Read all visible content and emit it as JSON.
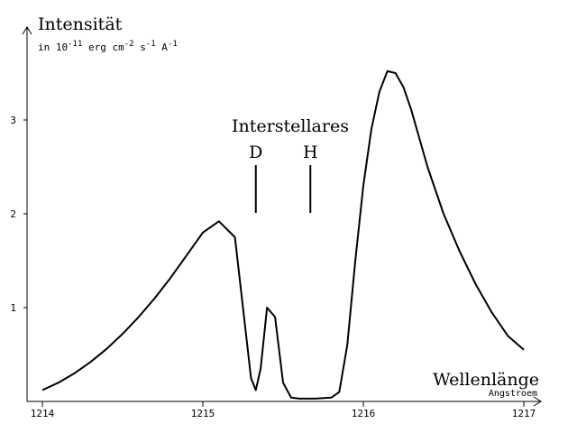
{
  "chart_data": {
    "type": "line",
    "ylabel": "Intensität",
    "yunit": {
      "prefix": "in 10",
      "exp1": "-11",
      "mid1": " erg cm",
      "exp2": "-2",
      "mid2": " s",
      "exp3": "-1",
      "mid3": " A",
      "exp4": "-1"
    },
    "xlabel": "Wellenlänge",
    "xunit": "Angstroem",
    "xlim": [
      1214,
      1217
    ],
    "ylim": [
      0,
      3.8
    ],
    "x_ticks": [
      {
        "value": 1214,
        "label": "1214"
      },
      {
        "value": 1215,
        "label": "1215"
      },
      {
        "value": 1216,
        "label": "1216"
      },
      {
        "value": 1217,
        "label": "1217"
      }
    ],
    "y_ticks": [
      {
        "value": 1,
        "label": "1"
      },
      {
        "value": 2,
        "label": "2"
      },
      {
        "value": 3,
        "label": "3"
      }
    ],
    "annotations": {
      "title": "Interstellares",
      "lines": [
        {
          "label": "D",
          "x": 1215.33
        },
        {
          "label": "H",
          "x": 1215.67
        }
      ]
    },
    "series": [
      {
        "x": [
          1214.0,
          1214.1,
          1214.2,
          1214.3,
          1214.4,
          1214.5,
          1214.6,
          1214.7,
          1214.8,
          1214.9,
          1215.0,
          1215.1,
          1215.2,
          1215.25,
          1215.3,
          1215.33,
          1215.36,
          1215.4,
          1215.45,
          1215.5,
          1215.55,
          1215.6,
          1215.7,
          1215.8,
          1215.85,
          1215.9,
          1215.95,
          1216.0,
          1216.05,
          1216.1,
          1216.15,
          1216.2,
          1216.25,
          1216.3,
          1216.4,
          1216.5,
          1216.6,
          1216.7,
          1216.8,
          1216.9,
          1217.0
        ],
        "y": [
          0.12,
          0.2,
          0.3,
          0.42,
          0.56,
          0.72,
          0.9,
          1.1,
          1.32,
          1.56,
          1.8,
          1.92,
          1.75,
          1.0,
          0.25,
          0.12,
          0.35,
          1.0,
          0.9,
          0.2,
          0.04,
          0.03,
          0.03,
          0.04,
          0.1,
          0.6,
          1.5,
          2.3,
          2.9,
          3.3,
          3.52,
          3.5,
          3.35,
          3.1,
          2.5,
          2.0,
          1.6,
          1.25,
          0.95,
          0.7,
          0.55
        ]
      }
    ]
  }
}
